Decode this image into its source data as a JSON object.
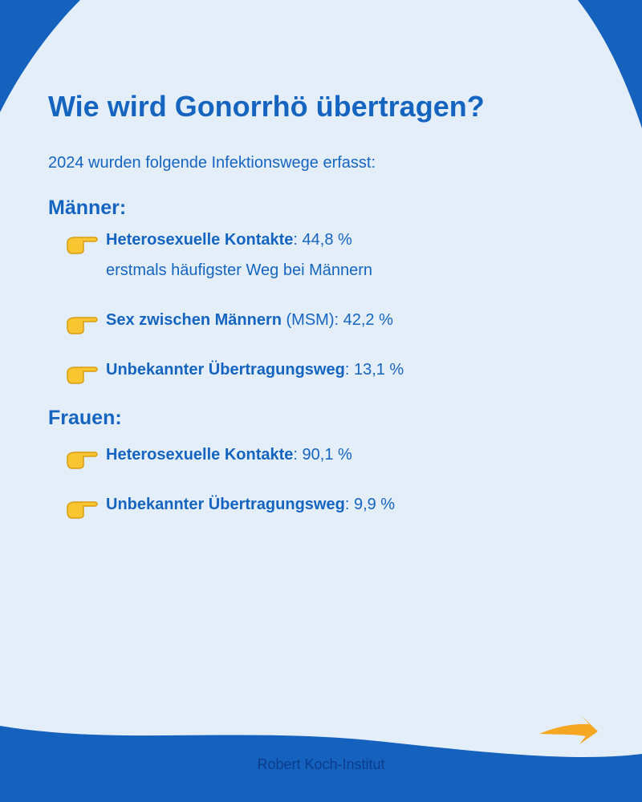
{
  "header": {
    "title": "Wie wird Gonorrhö übertragen?",
    "intro": "2024 wurden folgende Infektionswege erfasst:"
  },
  "sections": [
    {
      "heading": "Männer:",
      "items": [
        {
          "label": "Heterosexuelle Kontakte",
          "detail": ": 44,8 %",
          "note": "erstmals häufigster Weg bei Männern"
        },
        {
          "label": "Sex zwischen Männern",
          "detail": " (MSM): 42,2 %"
        },
        {
          "label": "Unbekannter Übertragungsweg",
          "detail": ": 13,1 %"
        }
      ]
    },
    {
      "heading": "Frauen:",
      "items": [
        {
          "label": "Heterosexuelle Kontakte",
          "detail": ": 90,1 %"
        },
        {
          "label": "Unbekannter Übertragungsweg",
          "detail": ": 9,9 %"
        }
      ]
    }
  ],
  "footer": {
    "text": "Robert Koch-Institut"
  }
}
